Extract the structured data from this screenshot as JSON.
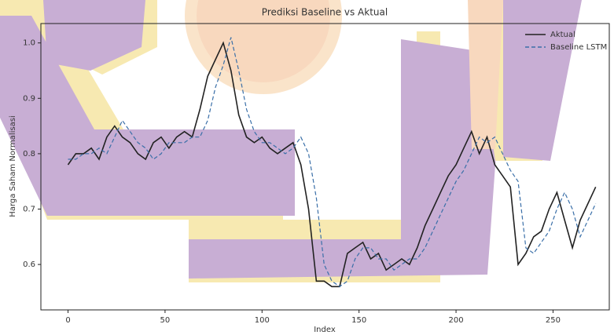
{
  "chart_data": {
    "type": "line",
    "title": "Prediksi Baseline vs Aktual",
    "x_label": "Index",
    "y_label": "Harga Saham Normalisasi",
    "x": [
      0,
      4,
      8,
      12,
      16,
      20,
      24,
      28,
      32,
      36,
      40,
      44,
      48,
      52,
      56,
      60,
      64,
      68,
      72,
      76,
      80,
      84,
      88,
      92,
      96,
      100,
      104,
      108,
      112,
      116,
      120,
      124,
      128,
      132,
      136,
      140,
      144,
      148,
      152,
      156,
      160,
      164,
      168,
      172,
      176,
      180,
      184,
      188,
      192,
      196,
      200,
      204,
      208,
      212,
      216,
      220,
      224,
      228,
      232,
      236,
      240,
      244,
      248,
      252,
      256,
      260,
      264,
      268,
      272
    ],
    "series": [
      {
        "name": "Aktual",
        "color": "#222222",
        "linestyle": "solid",
        "values": [
          0.78,
          0.8,
          0.8,
          0.81,
          0.79,
          0.83,
          0.85,
          0.83,
          0.82,
          0.8,
          0.79,
          0.82,
          0.83,
          0.81,
          0.83,
          0.84,
          0.83,
          0.88,
          0.94,
          0.97,
          1.0,
          0.95,
          0.87,
          0.83,
          0.82,
          0.83,
          0.81,
          0.8,
          0.81,
          0.82,
          0.78,
          0.7,
          0.57,
          0.57,
          0.56,
          0.56,
          0.62,
          0.63,
          0.64,
          0.61,
          0.62,
          0.59,
          0.6,
          0.61,
          0.6,
          0.63,
          0.67,
          0.7,
          0.73,
          0.76,
          0.78,
          0.81,
          0.84,
          0.8,
          0.83,
          0.78,
          0.76,
          0.74,
          0.6,
          0.62,
          0.65,
          0.66,
          0.7,
          0.73,
          0.68,
          0.63,
          0.68,
          0.71,
          0.74
        ]
      },
      {
        "name": "Baseline LSTM",
        "color": "#3a6fa8",
        "linestyle": "dashed",
        "values": [
          0.79,
          0.79,
          0.8,
          0.8,
          0.81,
          0.8,
          0.83,
          0.86,
          0.84,
          0.82,
          0.81,
          0.79,
          0.8,
          0.82,
          0.82,
          0.82,
          0.83,
          0.83,
          0.86,
          0.92,
          0.96,
          1.01,
          0.95,
          0.88,
          0.84,
          0.82,
          0.82,
          0.81,
          0.8,
          0.81,
          0.83,
          0.8,
          0.72,
          0.6,
          0.57,
          0.56,
          0.57,
          0.61,
          0.63,
          0.63,
          0.61,
          0.61,
          0.59,
          0.6,
          0.61,
          0.61,
          0.63,
          0.66,
          0.69,
          0.72,
          0.75,
          0.77,
          0.8,
          0.83,
          0.82,
          0.83,
          0.8,
          0.77,
          0.75,
          0.63,
          0.62,
          0.64,
          0.66,
          0.7,
          0.73,
          0.7,
          0.65,
          0.68,
          0.71
        ]
      }
    ],
    "xlim": [
      -14,
      279
    ],
    "ylim": [
      0.518,
      1.035
    ],
    "xticks": [
      0,
      50,
      100,
      150,
      200,
      250
    ],
    "yticks": [
      0.6,
      0.7,
      0.8,
      0.9,
      {
        "value": 1,
        "label": "1.0"
      }
    ],
    "legend": "upper right"
  }
}
